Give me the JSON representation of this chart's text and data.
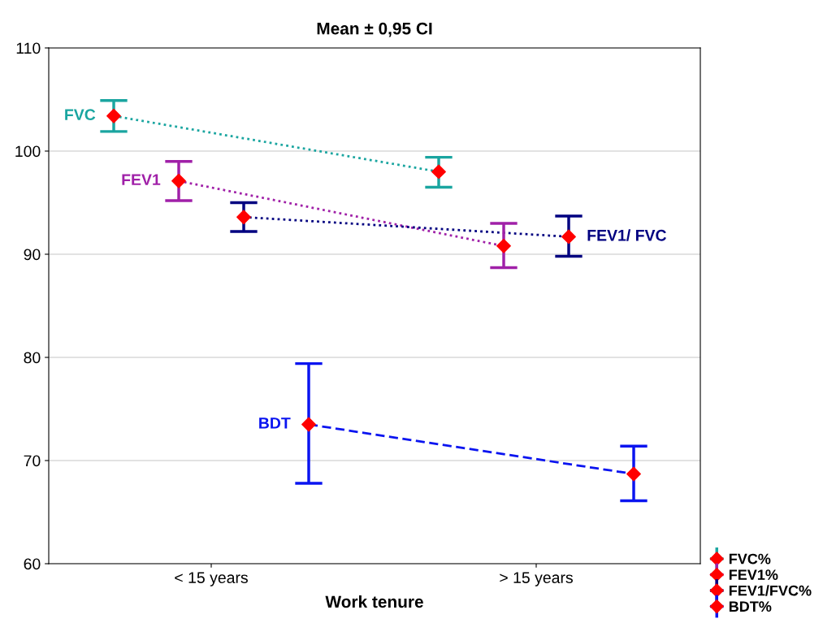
{
  "chart_data": {
    "type": "line",
    "title": "Mean ± 0,95 CI",
    "xlabel": "Work tenure",
    "categories": [
      "< 15 years",
      "> 15 years"
    ],
    "series": [
      {
        "name": "FVC%",
        "color": "#1aa5a0",
        "colors": [
          "#ff0000",
          "#ff0000"
        ],
        "values": [
          103.4,
          98.0
        ],
        "errors": [
          [
            101.9,
            104.9
          ],
          [
            96.5,
            99.4
          ]
        ],
        "line_style": "dotted",
        "marker": "diamond"
      },
      {
        "name": "FEV1%",
        "color": "#a020a8",
        "colors": [
          "#ff0000",
          "#ff0000"
        ],
        "values": [
          97.1,
          90.8
        ],
        "errors": [
          [
            95.2,
            99.0
          ],
          [
            88.7,
            93.0
          ]
        ],
        "line_style": "dotted",
        "marker": "diamond"
      },
      {
        "name": "FEV1/FVC%",
        "color": "#000080",
        "colors": [
          "#ff0000",
          "#ff0000"
        ],
        "values": [
          93.6,
          91.7
        ],
        "errors": [
          [
            92.2,
            95.0
          ],
          [
            89.8,
            93.7
          ]
        ],
        "line_style": "dotted",
        "marker": "diamond"
      },
      {
        "name": "BDT%",
        "color": "#0a14f0",
        "colors": [
          "#ff0000",
          "#ff0000"
        ],
        "values": [
          73.5,
          68.7
        ],
        "errors": [
          [
            67.8,
            79.4
          ],
          [
            66.1,
            71.4
          ]
        ],
        "line_style": "dashed",
        "marker": "diamond"
      }
    ],
    "annotations": [
      "FVC",
      "FEV1",
      "FEV1/ FVC",
      "BDT"
    ],
    "ylim": [
      60,
      110
    ],
    "yticks": [
      60,
      70,
      80,
      90,
      100,
      110
    ],
    "grid": "y",
    "legend": "bottom right"
  }
}
